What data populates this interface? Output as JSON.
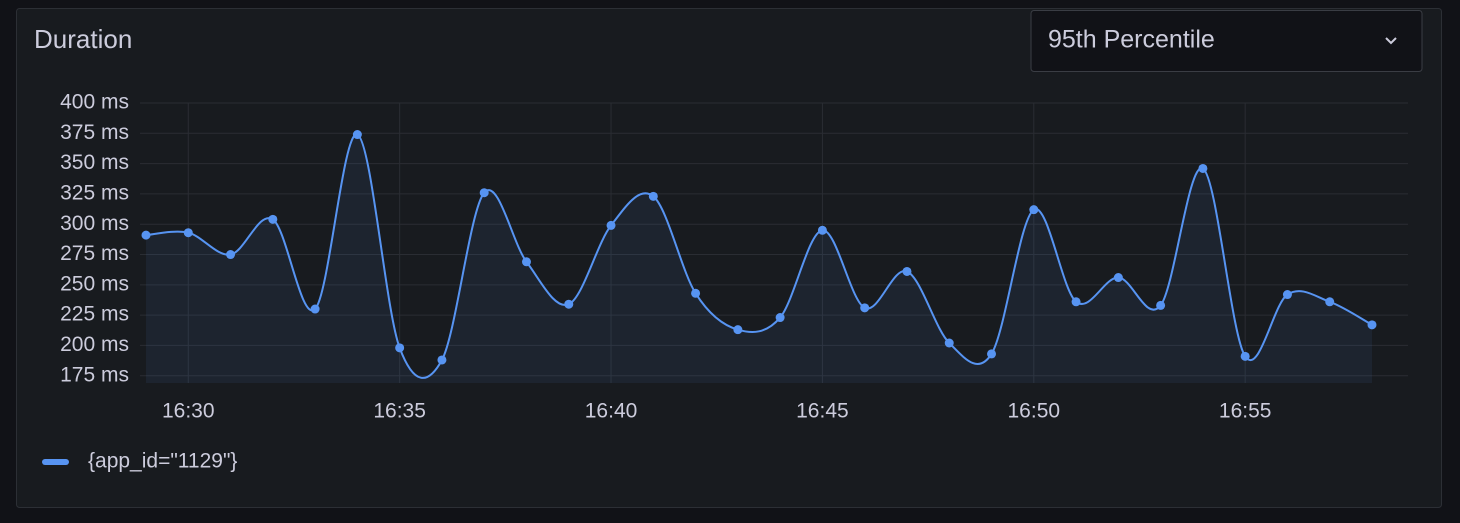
{
  "panel": {
    "dropdown": "95th Percentile"
  },
  "chart_data": {
    "type": "line",
    "title": "Duration",
    "x": [
      "16:29",
      "16:30",
      "16:31",
      "16:32",
      "16:33",
      "16:34",
      "16:35",
      "16:36",
      "16:37",
      "16:38",
      "16:39",
      "16:40",
      "16:41",
      "16:42",
      "16:43",
      "16:44",
      "16:45",
      "16:46",
      "16:47",
      "16:48",
      "16:49",
      "16:50",
      "16:51",
      "16:52",
      "16:53",
      "16:54",
      "16:55",
      "16:56",
      "16:57",
      "16:58"
    ],
    "series": [
      {
        "name": "{app_id=\"1129\"}",
        "color": "#5794f2",
        "values": [
          291,
          293,
          275,
          304,
          230,
          374,
          198,
          188,
          326,
          269,
          234,
          299,
          323,
          243,
          213,
          223,
          295,
          231,
          261,
          202,
          193,
          312,
          236,
          256,
          233,
          346,
          191,
          242,
          236,
          217
        ]
      }
    ],
    "xticks": [
      "16:30",
      "16:35",
      "16:40",
      "16:45",
      "16:50",
      "16:55"
    ],
    "ylim": [
      169,
      400
    ],
    "yticks": [
      {
        "value": 175,
        "label": "175 ms"
      },
      {
        "value": 200,
        "label": "200 ms"
      },
      {
        "value": 225,
        "label": "225 ms"
      },
      {
        "value": 250,
        "label": "250 ms"
      },
      {
        "value": 275,
        "label": "275 ms"
      },
      {
        "value": 300,
        "label": "300 ms"
      },
      {
        "value": 325,
        "label": "325 ms"
      },
      {
        "value": 350,
        "label": "350 ms"
      },
      {
        "value": 375,
        "label": "375 ms"
      },
      {
        "value": 400,
        "label": "400 ms"
      }
    ],
    "grid": true,
    "legend": "bottom-left"
  }
}
